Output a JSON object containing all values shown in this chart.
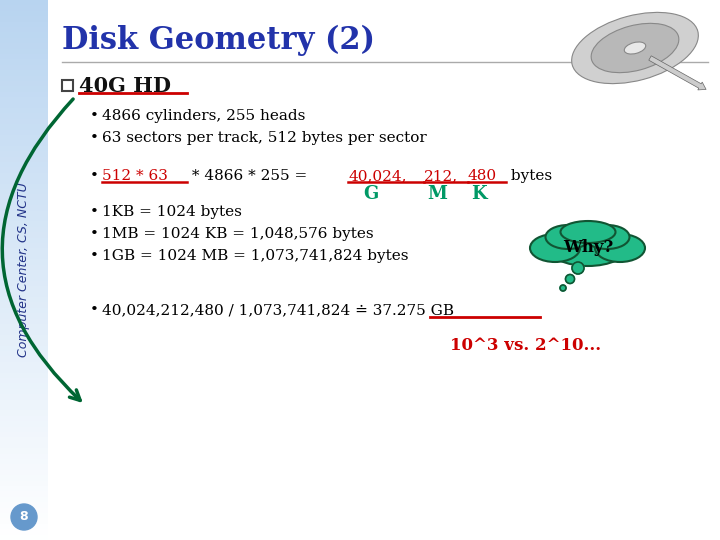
{
  "title": "Disk Geometry (2)",
  "sidebar_text": "Computer Center, CS, NCTU",
  "sidebar_bg_top": "#b8d4f0",
  "sidebar_bg_bot": "#ffffff",
  "slide_bg": "#ffffff",
  "header_color": "#2233aa",
  "red_color": "#cc0000",
  "green_color": "#009966",
  "slide_number": "8",
  "section_label": "40G HD",
  "bullet1": "4866 cylinders, 255 heads",
  "bullet2": "63 sectors per track, 512 bytes per sector",
  "calc_prefix": "512 * 63",
  "calc_mid": " * 4866 * 255 = ",
  "calc_num1": "40,024,",
  "calc_num2": "212,",
  "calc_num3": "480",
  "calc_suffix": " bytes",
  "gmk": [
    "G",
    "M",
    "K"
  ],
  "kb_line": "1KB = 1024 bytes",
  "mb_line": "1MB = 1024 KB = 1,048,576 bytes",
  "gb_line": "1GB = 1024 MB = 1,073,741,824 bytes",
  "result_pre": "40,024,212,480 / 1,073,741,824",
  "result_approx": " ≐ ",
  "result_num": "37.275 GB",
  "footer_line": "10^3 vs. 2^10...",
  "why_bubble": "Why?"
}
